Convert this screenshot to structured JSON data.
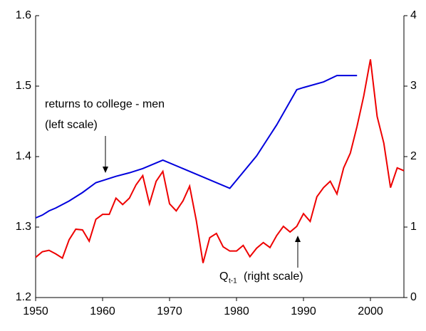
{
  "chart_data": {
    "type": "line",
    "xlim": [
      1950,
      2005
    ],
    "xticks": [
      1950,
      1960,
      1970,
      1980,
      1990,
      2000
    ],
    "ylim": [
      1.2,
      1.6
    ],
    "yticks": [
      1.2,
      1.3,
      1.4,
      1.5,
      1.6
    ],
    "y2lim": [
      0,
      4
    ],
    "y2ticks": [
      0,
      1,
      2,
      3,
      4
    ],
    "series": [
      {
        "name": "returns to college - men",
        "color": "#0000dd",
        "x": [
          1950,
          1951,
          1952,
          1953,
          1955,
          1957,
          1959,
          1960,
          1962,
          1964,
          1966,
          1969,
          1972,
          1975,
          1979,
          1983,
          1986,
          1989,
          1990,
          1993,
          1995,
          1998
        ],
        "values": [
          1.313,
          1.317,
          1.323,
          1.327,
          1.337,
          1.349,
          1.363,
          1.366,
          1.372,
          1.377,
          1.383,
          1.395,
          1.383,
          1.371,
          1.355,
          1.401,
          1.445,
          1.495,
          1.498,
          1.506,
          1.515,
          1.515
        ]
      },
      {
        "name": "Q",
        "color": "#ee0000",
        "axis": "y2",
        "x": [
          1950,
          1951,
          1952,
          1953,
          1954,
          1955,
          1956,
          1957,
          1958,
          1959,
          1960,
          1961,
          1962,
          1963,
          1964,
          1965,
          1966,
          1967,
          1968,
          1969,
          1970,
          1971,
          1972,
          1973,
          1974,
          1975,
          1976,
          1977,
          1978,
          1979,
          1980,
          1981,
          1982,
          1983,
          1984,
          1985,
          1986,
          1987,
          1988,
          1989,
          1990,
          1991,
          1992,
          1993,
          1994,
          1995,
          1996,
          1997,
          1998,
          1999,
          2000,
          2001,
          2002,
          2003,
          2004,
          2005
        ],
        "values": [
          0.57,
          0.65,
          0.67,
          0.62,
          0.56,
          0.82,
          0.97,
          0.96,
          0.8,
          1.11,
          1.18,
          1.18,
          1.41,
          1.32,
          1.41,
          1.6,
          1.73,
          1.33,
          1.65,
          1.79,
          1.33,
          1.23,
          1.37,
          1.58,
          1.09,
          0.49,
          0.85,
          0.91,
          0.72,
          0.66,
          0.66,
          0.74,
          0.58,
          0.7,
          0.78,
          0.71,
          0.88,
          1.01,
          0.93,
          1.01,
          1.19,
          1.08,
          1.43,
          1.56,
          1.65,
          1.47,
          1.84,
          2.05,
          2.43,
          2.86,
          3.38,
          2.57,
          2.19,
          1.56,
          1.84,
          1.8
        ]
      }
    ],
    "annotations": [
      {
        "lines": [
          "returns to college - men",
          "(left scale)"
        ]
      },
      {
        "text": "Q",
        "subscript": "t-1",
        "suffix": "(right scale)"
      }
    ]
  }
}
